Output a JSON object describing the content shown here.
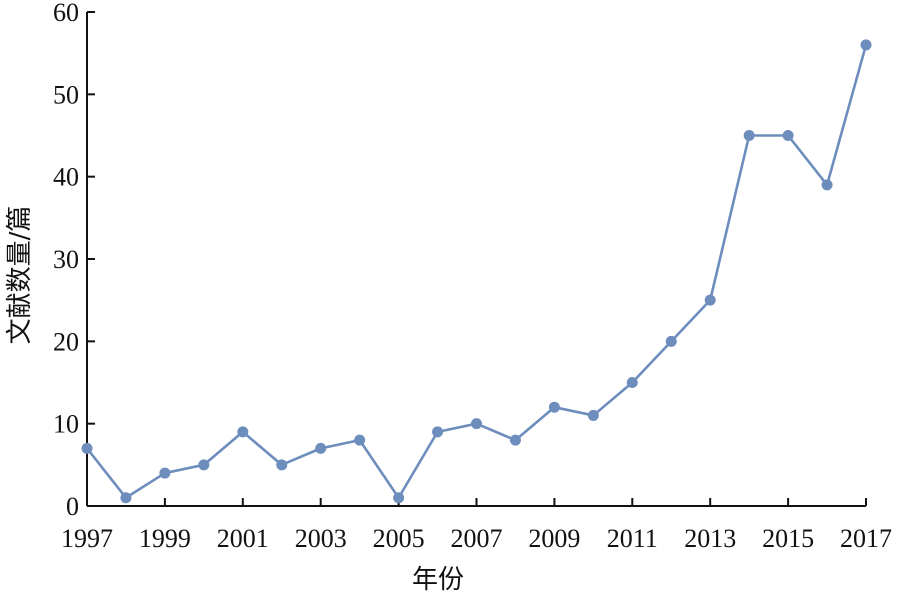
{
  "chart_data": {
    "type": "line",
    "title": "",
    "xlabel": "年份",
    "ylabel": "文献数量/篇",
    "x": [
      1997,
      1998,
      1999,
      2000,
      2001,
      2002,
      2003,
      2004,
      2005,
      2006,
      2007,
      2008,
      2009,
      2010,
      2011,
      2012,
      2013,
      2014,
      2015,
      2016,
      2017
    ],
    "series": [
      {
        "values": [
          7,
          1,
          4,
          5,
          9,
          5,
          7,
          8,
          1,
          9,
          10,
          8,
          12,
          11,
          15,
          20,
          25,
          45,
          45,
          39,
          56
        ]
      }
    ],
    "xticks": [
      "1997",
      "1999",
      "2001",
      "2003",
      "2005",
      "2007",
      "2009",
      "2011",
      "2013",
      "2015",
      "2017"
    ],
    "yticks": [
      "0",
      "10",
      "20",
      "30",
      "40",
      "50",
      "60"
    ],
    "xlim": [
      1997,
      2017
    ],
    "ylim": [
      0,
      60
    ],
    "grid": false,
    "colors": {
      "line": "#6d8dbd",
      "marker": "#6d8dbd",
      "axis": "#111111"
    }
  }
}
